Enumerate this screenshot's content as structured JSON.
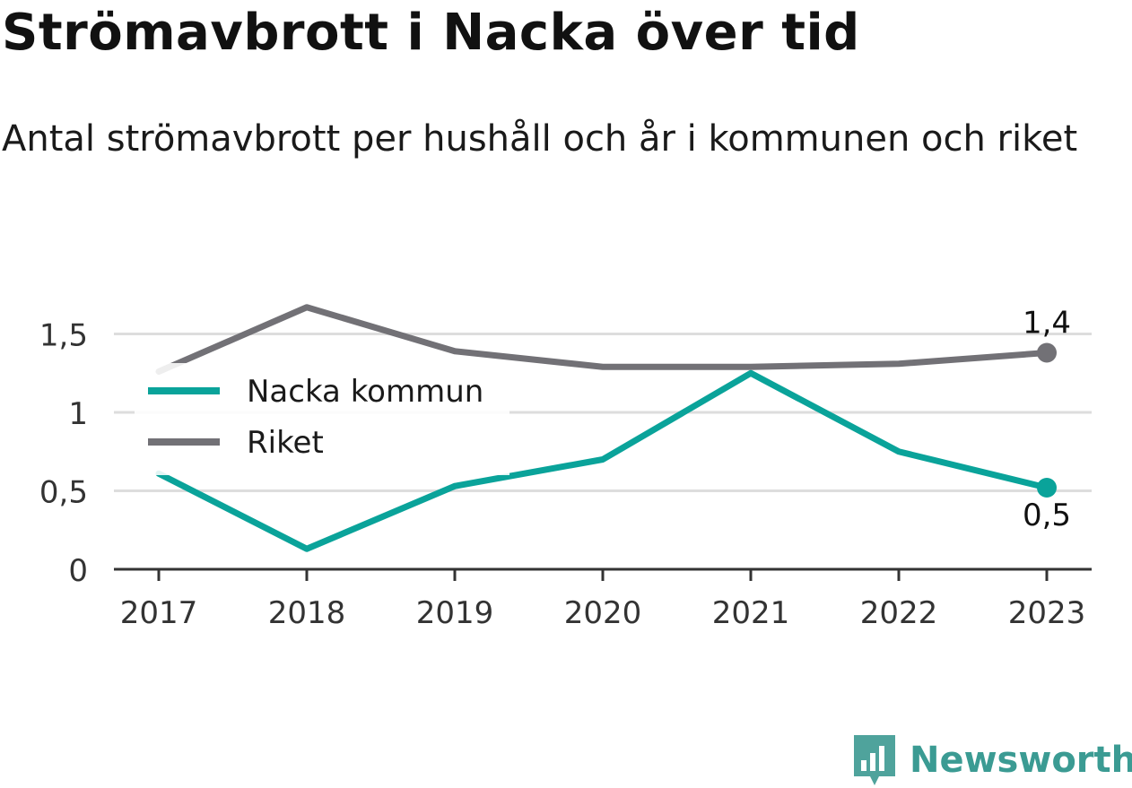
{
  "title": "Strömavbrott i Nacka över tid",
  "subtitle": "Antal strömavbrott per hushåll och år i kommunen och riket",
  "brand": "Newsworthy",
  "colors": {
    "nacka": "#0aa39a",
    "riket": "#727176",
    "grid": "#dddddd",
    "axis": "#333333"
  },
  "chart_data": {
    "type": "line",
    "categories": [
      "2017",
      "2018",
      "2019",
      "2020",
      "2021",
      "2022",
      "2023"
    ],
    "series": [
      {
        "name": "Nacka kommun",
        "values": [
          0.61,
          0.13,
          0.53,
          0.7,
          1.25,
          0.75,
          0.52
        ],
        "end_label": "0,5"
      },
      {
        "name": "Riket",
        "values": [
          1.26,
          1.67,
          1.39,
          1.29,
          1.29,
          1.31,
          1.38
        ],
        "end_label": "1,4"
      }
    ],
    "yticks": [
      {
        "value": 0,
        "label": "0"
      },
      {
        "value": 0.5,
        "label": "0,5"
      },
      {
        "value": 1,
        "label": "1"
      },
      {
        "value": 1.5,
        "label": "1,5"
      }
    ],
    "ylim": [
      0,
      1.5
    ],
    "grid": true,
    "legend_position": "top-left"
  }
}
